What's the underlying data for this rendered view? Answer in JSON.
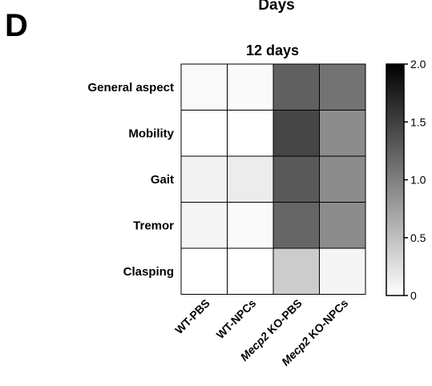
{
  "figure": {
    "panel_label": "D",
    "top_title": "Days"
  },
  "chart_data": {
    "type": "heatmap",
    "title": "12 days",
    "rows": [
      "General aspect",
      "Mobility",
      "Gait",
      "Tremor",
      "Clasping"
    ],
    "columns": [
      {
        "prefix": "",
        "italic": "",
        "text": "WT-PBS"
      },
      {
        "prefix": "",
        "italic": "",
        "text": "WT-NPCs"
      },
      {
        "prefix": "",
        "italic": "Mecp2",
        "text": " KO-PBS"
      },
      {
        "prefix": "",
        "italic": "Mecp2",
        "text": " KO-NPCs"
      }
    ],
    "values": [
      [
        0.05,
        0.04,
        1.25,
        1.1
      ],
      [
        0.0,
        0.0,
        1.45,
        0.9
      ],
      [
        0.1,
        0.15,
        1.3,
        0.9
      ],
      [
        0.08,
        0.04,
        1.2,
        0.9
      ],
      [
        0.0,
        0.0,
        0.4,
        0.08
      ]
    ],
    "colorbar": {
      "min": 0,
      "max": 2.0,
      "ticks": [
        0,
        0.5,
        1.0,
        1.5,
        2.0
      ],
      "tick_labels": [
        "0",
        "0.5",
        "1.0",
        "1.5",
        "2.0"
      ],
      "color_low": "#ffffff",
      "color_high": "#000000"
    }
  }
}
